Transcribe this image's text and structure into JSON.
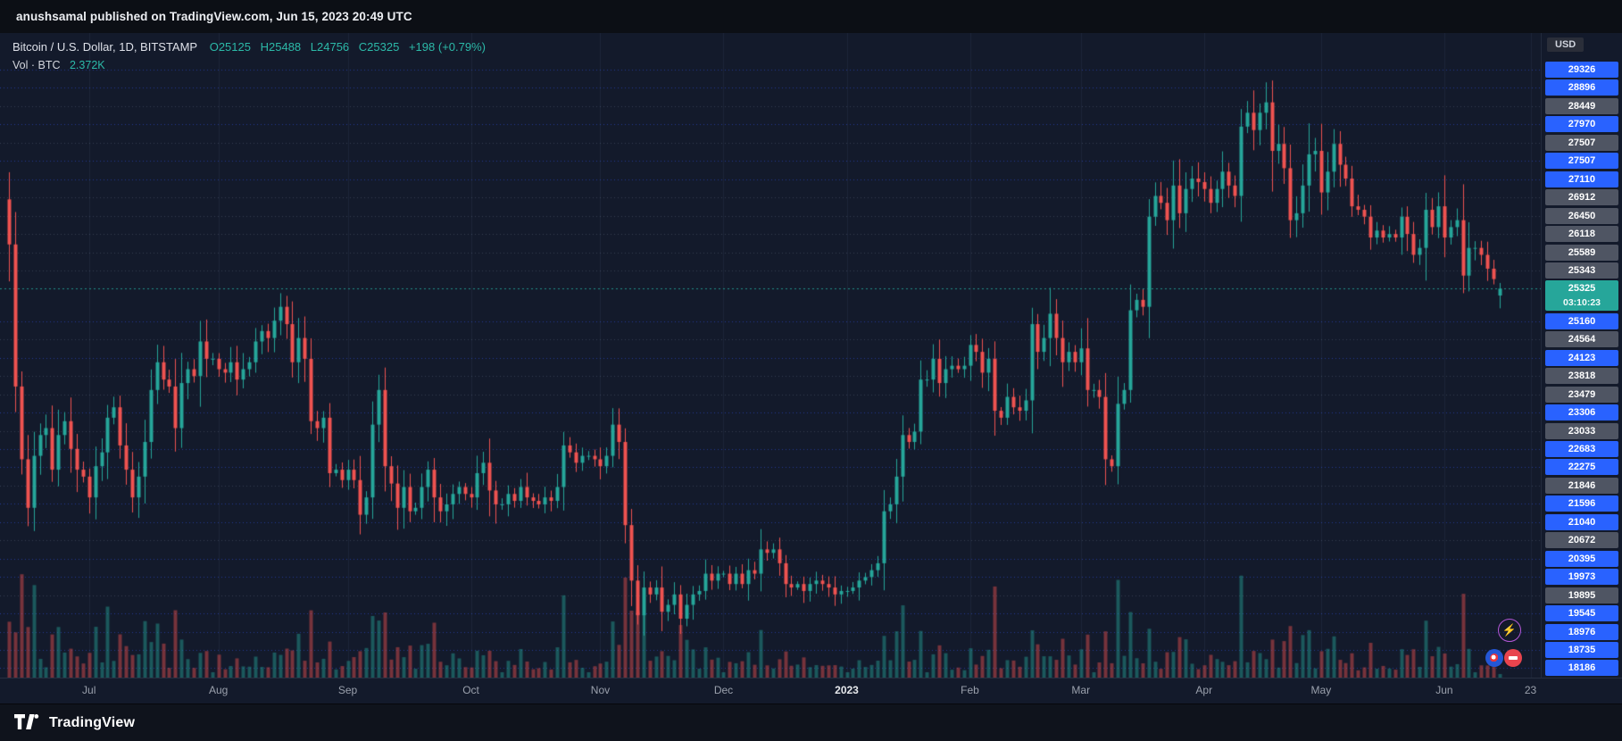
{
  "published_bar": {
    "text": "anushsamal published on TradingView.com, Jun 15, 2023 20:49 UTC"
  },
  "legend": {
    "symbol": "Bitcoin / U.S. Dollar, 1D, BITSTAMP",
    "open": "O25125",
    "high": "H25488",
    "low": "L24756",
    "close": "C25325",
    "change": "+198 (+0.79%)",
    "volume_label": "Vol · BTC",
    "volume_value": "2.372K"
  },
  "price_axis": {
    "currency": "USD",
    "labels": [
      {
        "value": "29326",
        "style": "blue"
      },
      {
        "value": "28896",
        "style": "blue"
      },
      {
        "value": "28449",
        "style": "gray"
      },
      {
        "value": "27970",
        "style": "blue"
      },
      {
        "value": "27507",
        "style": "gray"
      },
      {
        "value": "27507",
        "style": "blue"
      },
      {
        "value": "27110",
        "style": "blue"
      },
      {
        "value": "26912",
        "style": "gray"
      },
      {
        "value": "26450",
        "style": "gray"
      },
      {
        "value": "26118",
        "style": "gray"
      },
      {
        "value": "25589",
        "style": "gray"
      },
      {
        "value": "25343",
        "style": "gray"
      },
      {
        "value": "25325",
        "style": "current",
        "countdown": "03:10:23"
      },
      {
        "value": "25160",
        "style": "blue"
      },
      {
        "value": "24564",
        "style": "gray"
      },
      {
        "value": "24123",
        "style": "blue"
      },
      {
        "value": "23818",
        "style": "gray"
      },
      {
        "value": "23479",
        "style": "gray"
      },
      {
        "value": "23306",
        "style": "blue"
      },
      {
        "value": "23033",
        "style": "gray"
      },
      {
        "value": "22683",
        "style": "blue"
      },
      {
        "value": "22275",
        "style": "blue"
      },
      {
        "value": "21846",
        "style": "gray"
      },
      {
        "value": "21596",
        "style": "blue"
      },
      {
        "value": "21040",
        "style": "blue"
      },
      {
        "value": "20672",
        "style": "gray"
      },
      {
        "value": "20395",
        "style": "blue"
      },
      {
        "value": "19973",
        "style": "blue"
      },
      {
        "value": "19895",
        "style": "gray"
      },
      {
        "value": "19545",
        "style": "blue"
      },
      {
        "value": "18976",
        "style": "blue"
      },
      {
        "value": "18735",
        "style": "blue"
      },
      {
        "value": "18186",
        "style": "blue"
      }
    ]
  },
  "time_axis": {
    "ticks": [
      {
        "label": "Jul",
        "i": 13
      },
      {
        "label": "Aug",
        "i": 34
      },
      {
        "label": "Sep",
        "i": 55
      },
      {
        "label": "Oct",
        "i": 75
      },
      {
        "label": "Nov",
        "i": 96
      },
      {
        "label": "Dec",
        "i": 116
      },
      {
        "label": "2023",
        "i": 136,
        "major": true
      },
      {
        "label": "Feb",
        "i": 156
      },
      {
        "label": "Mar",
        "i": 174
      },
      {
        "label": "Apr",
        "i": 194
      },
      {
        "label": "May",
        "i": 213
      },
      {
        "label": "Jun",
        "i": 233
      },
      {
        "label": "23",
        "i": 247
      }
    ]
  },
  "footer": {
    "brand": "TradingView"
  },
  "colors": {
    "background": "#131a2b",
    "up": "#26a69a",
    "down": "#ef5350",
    "alert_blue": "#2962ff",
    "chip_gray": "#4f5563",
    "current_teal": "#26a69a",
    "grid_blue": "rgba(56,94,255,0.50)",
    "grid_gray": "rgba(140,152,175,0.30)",
    "month_grid": "rgba(120,140,190,0.10)"
  },
  "chart_data": {
    "type": "candlestick",
    "title": "Bitcoin / U.S. Dollar",
    "symbol": "BTC/USD",
    "interval": "1D",
    "exchange": "BITSTAMP",
    "legend_position": "top-left",
    "grid": "dotted-horizontal-alert-lines",
    "price_range": [
      14100,
      32700
    ],
    "first_open": 27900,
    "last": {
      "open": 25125,
      "high": 25488,
      "low": 24756,
      "close": 25325,
      "change": 198,
      "change_pct": 0.79,
      "volume_display": "2.372K"
    },
    "x_labels": [
      "Jul",
      "Aug",
      "Sep",
      "Oct",
      "Nov",
      "Dec",
      "2023",
      "Feb",
      "Mar",
      "Apr",
      "May",
      "Jun",
      "23"
    ],
    "closes": [
      26600,
      22500,
      20400,
      19000,
      20500,
      21100,
      21300,
      20100,
      21100,
      21500,
      20700,
      20100,
      19900,
      19300,
      20200,
      20600,
      21600,
      21900,
      20800,
      20100,
      19300,
      19900,
      20900,
      22400,
      23200,
      22700,
      22500,
      21300,
      22600,
      23000,
      22800,
      23800,
      23300,
      23300,
      23000,
      22900,
      23200,
      22700,
      23000,
      23200,
      23800,
      24100,
      23900,
      24400,
      24800,
      24300,
      23200,
      23900,
      23300,
      21500,
      21300,
      21600,
      20000,
      20100,
      19800,
      20100,
      19800,
      18800,
      19300,
      21400,
      22400,
      20200,
      19700,
      19000,
      19600,
      18900,
      19000,
      19600,
      20100,
      19300,
      18900,
      19100,
      19400,
      19600,
      19400,
      19300,
      20000,
      20300,
      19500,
      19100,
      19100,
      19400,
      19200,
      19600,
      19300,
      19200,
      19100,
      19300,
      19200,
      19600,
      20800,
      20600,
      20300,
      20500,
      20500,
      20400,
      20200,
      20500,
      21400,
      20900,
      18500,
      16900,
      15900,
      16700,
      16500,
      16700,
      16000,
      16200,
      16500,
      15800,
      16200,
      16500,
      16600,
      17100,
      16900,
      17100,
      17100,
      16800,
      17100,
      16800,
      17200,
      17100,
      17800,
      17700,
      17800,
      17400,
      16800,
      16700,
      16800,
      16600,
      16800,
      16900,
      16800,
      16700,
      16500,
      16600,
      16600,
      16700,
      16900,
      17000,
      17200,
      17400,
      18900,
      19100,
      19900,
      21100,
      20900,
      21200,
      22700,
      22700,
      23300,
      22600,
      23000,
      23100,
      23000,
      23100,
      23700,
      23500,
      22900,
      23300,
      21800,
      21600,
      22200,
      21900,
      21800,
      22100,
      24300,
      23500,
      23900,
      24600,
      23900,
      23200,
      23500,
      23200,
      23600,
      22400,
      22400,
      22200,
      20400,
      20200,
      22000,
      22400,
      24700,
      25000,
      24800,
      27400,
      28000,
      27800,
      27300,
      28300,
      27500,
      28200,
      28500,
      28400,
      28200,
      27800,
      28200,
      28700,
      28300,
      28000,
      30000,
      30400,
      29900,
      30400,
      30700,
      29300,
      29500,
      28800,
      27300,
      27500,
      28300,
      29200,
      29300,
      28100,
      28700,
      29500,
      28900,
      28500,
      27700,
      27600,
      27400,
      26800,
      27000,
      26800,
      26900,
      26800,
      27400,
      26900,
      26300,
      26500,
      27600,
      27100,
      27700,
      26800,
      27100,
      27300,
      25700,
      26500,
      26500,
      26300,
      25900,
      25600,
      25325
    ]
  }
}
